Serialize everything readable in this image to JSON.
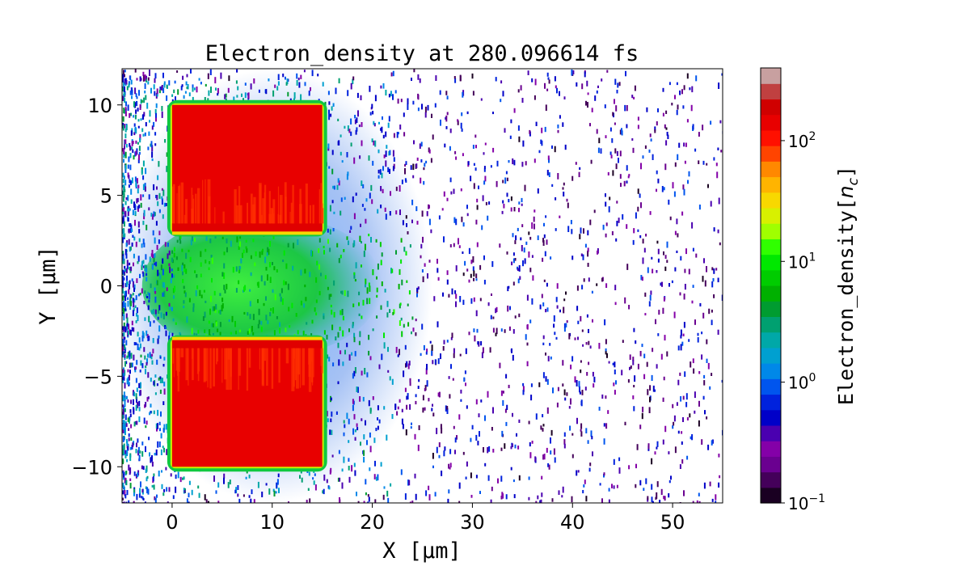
{
  "chart_data": {
    "type": "heatmap",
    "title": "Electron_density at 280.096614 fs",
    "xlabel": "X [μm]",
    "ylabel": "Y [μm]",
    "xlim": [
      -5,
      55
    ],
    "ylim": [
      -12,
      12
    ],
    "x_ticks": [
      0,
      10,
      20,
      30,
      40,
      50
    ],
    "x_tick_labels": [
      "0",
      "10",
      "20",
      "30",
      "40",
      "50"
    ],
    "y_ticks": [
      10,
      5,
      0,
      -5,
      -10
    ],
    "y_tick_labels": [
      "10",
      "5",
      "0",
      "−5",
      "−10"
    ],
    "colorbar": {
      "label": "Electron_density[n_c]",
      "scale": "log",
      "range": [
        0.1,
        400
      ],
      "ticks": [
        0.1,
        1,
        10,
        100
      ],
      "tick_labels": [
        {
          "base": "10",
          "exp": "−1"
        },
        {
          "base": "10",
          "exp": "0"
        },
        {
          "base": "10",
          "exp": "1"
        },
        {
          "base": "10",
          "exp": "2"
        }
      ],
      "colors": [
        "#1a0022",
        "#44005a",
        "#6a0090",
        "#8400a8",
        "#4a00b0",
        "#0000c8",
        "#0022dd",
        "#0055ee",
        "#0088e8",
        "#00a0d0",
        "#00a8a8",
        "#00a070",
        "#009c30",
        "#00b000",
        "#00cc00",
        "#00e800",
        "#30ff00",
        "#a0ff00",
        "#d8f000",
        "#f8d800",
        "#ffb400",
        "#ff8800",
        "#ff4400",
        "#ff1000",
        "#e80000",
        "#d00000",
        "#c04040",
        "#c8a0a0"
      ]
    },
    "regions": [
      {
        "name": "upper target slab",
        "x": [
          0,
          15
        ],
        "y": [
          3,
          10
        ],
        "value": 160
      },
      {
        "name": "lower target slab",
        "x": [
          0,
          15
        ],
        "y": [
          -10,
          -3
        ],
        "value": 160
      },
      {
        "name": "channel plasma",
        "x": [
          0,
          25
        ],
        "y": [
          -3,
          3
        ],
        "value": 8
      },
      {
        "name": "scattered electrons",
        "x": [
          -5,
          55
        ],
        "y": [
          -12,
          12
        ],
        "value": 0.5
      }
    ]
  }
}
